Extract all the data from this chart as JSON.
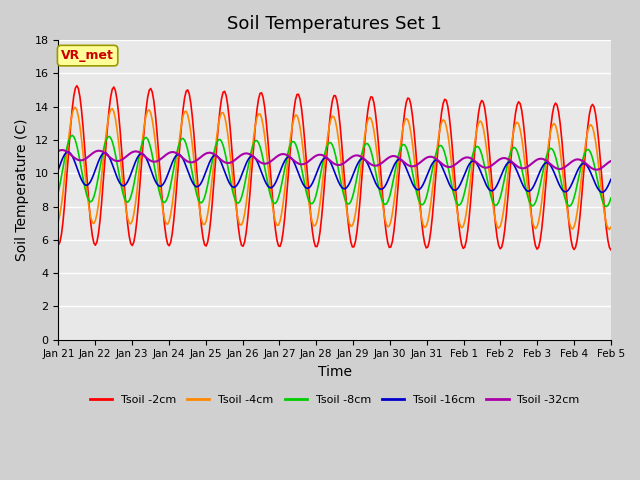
{
  "title": "Soil Temperatures Set 1",
  "xlabel": "Time",
  "ylabel": "Soil Temperature (C)",
  "ylim": [
    0,
    18
  ],
  "yticks": [
    0,
    2,
    4,
    6,
    8,
    10,
    12,
    14,
    16,
    18
  ],
  "xtick_labels": [
    "Jan 21",
    "Jan 22",
    "Jan 23",
    "Jan 24",
    "Jan 25",
    "Jan 26",
    "Jan 27",
    "Jan 28",
    "Jan 29",
    "Jan 30",
    "Jan 31",
    "Feb 1",
    "Feb 2",
    "Feb 3",
    "Feb 4",
    "Feb 5"
  ],
  "colors": {
    "Tsoil -2cm": "#ff0000",
    "Tsoil -4cm": "#ff8800",
    "Tsoil -8cm": "#00cc00",
    "Tsoil -16cm": "#0000cc",
    "Tsoil -32cm": "#aa00aa"
  },
  "annotation_text": "VR_met",
  "annotation_color": "#cc0000",
  "annotation_bg": "#ffff99",
  "annotation_border": "#999900",
  "plot_bg": "#e8e8e8",
  "fig_bg": "#d0d0d0",
  "grid_color": "#ffffff",
  "title_fontsize": 13,
  "label_fontsize": 10,
  "n_days": 15
}
